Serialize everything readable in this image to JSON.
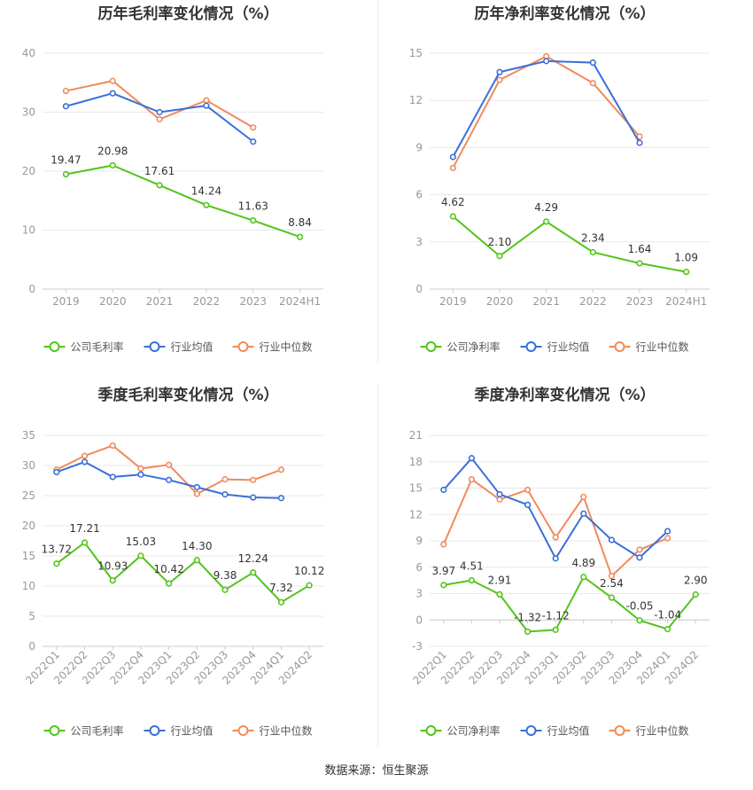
{
  "source": "数据来源：恒生聚源",
  "colors": {
    "company": "#52c41a",
    "avg": "#3a6fd8",
    "median": "#f08a5d",
    "grid": "#e8e8ec",
    "axis": "#999999",
    "label": "#333333"
  },
  "chart_data": [
    {
      "id": "annual-gross",
      "type": "line",
      "title": "历年毛利率变化情况（%）",
      "categories": [
        "2019",
        "2020",
        "2021",
        "2022",
        "2023",
        "2024H1"
      ],
      "ylim": [
        0,
        40
      ],
      "yticks": [
        0,
        10,
        20,
        30,
        40
      ],
      "rotate_x": false,
      "series": [
        {
          "name": "公司毛利率",
          "color": "#52c41a",
          "labels": true,
          "values": [
            19.47,
            20.98,
            17.61,
            14.24,
            11.63,
            8.84
          ],
          "value_labels": [
            "19.47",
            "20.98",
            "17.61",
            "14.24",
            "11.63",
            "8.84"
          ]
        },
        {
          "name": "行业均值",
          "color": "#3a6fd8",
          "labels": false,
          "values": [
            31.0,
            33.2,
            30.0,
            31.1,
            25.0,
            null
          ]
        },
        {
          "name": "行业中位数",
          "color": "#f08a5d",
          "labels": false,
          "values": [
            33.6,
            35.3,
            28.8,
            32.0,
            27.4,
            null
          ]
        }
      ]
    },
    {
      "id": "annual-net",
      "type": "line",
      "title": "历年净利率变化情况（%）",
      "categories": [
        "2019",
        "2020",
        "2021",
        "2022",
        "2023",
        "2024H1"
      ],
      "ylim": [
        0,
        15
      ],
      "yticks": [
        0,
        3,
        6,
        9,
        12,
        15
      ],
      "rotate_x": false,
      "series": [
        {
          "name": "公司净利率",
          "color": "#52c41a",
          "labels": true,
          "values": [
            4.62,
            2.1,
            4.29,
            2.34,
            1.64,
            1.09
          ],
          "value_labels": [
            "4.62",
            "2.10",
            "4.29",
            "2.34",
            "1.64",
            "1.09"
          ]
        },
        {
          "name": "行业均值",
          "color": "#3a6fd8",
          "labels": false,
          "values": [
            8.4,
            13.8,
            14.5,
            14.4,
            9.3,
            null
          ]
        },
        {
          "name": "行业中位数",
          "color": "#f08a5d",
          "labels": false,
          "values": [
            7.7,
            13.3,
            14.8,
            13.1,
            9.7,
            null
          ]
        }
      ]
    },
    {
      "id": "quarterly-gross",
      "type": "line",
      "title": "季度毛利率变化情况（%）",
      "categories": [
        "2022Q1",
        "2022Q2",
        "2022Q3",
        "2022Q4",
        "2023Q1",
        "2023Q2",
        "2023Q3",
        "2023Q4",
        "2024Q1",
        "2024Q2"
      ],
      "ylim": [
        0,
        35
      ],
      "yticks": [
        0,
        5,
        10,
        15,
        20,
        25,
        30,
        35
      ],
      "rotate_x": true,
      "series": [
        {
          "name": "公司毛利率",
          "color": "#52c41a",
          "labels": true,
          "values": [
            13.72,
            17.21,
            10.93,
            15.03,
            10.42,
            14.3,
            9.38,
            12.24,
            7.32,
            10.12
          ],
          "value_labels": [
            "13.72",
            "17.21",
            "10.93",
            "15.03",
            "10.42",
            "14.30",
            "9.38",
            "12.24",
            "7.32",
            "10.12"
          ]
        },
        {
          "name": "行业均值",
          "color": "#3a6fd8",
          "labels": false,
          "values": [
            28.9,
            30.6,
            28.1,
            28.5,
            27.6,
            26.4,
            25.2,
            24.7,
            24.6,
            null
          ]
        },
        {
          "name": "行业中位数",
          "color": "#f08a5d",
          "labels": false,
          "values": [
            29.3,
            31.6,
            33.3,
            29.5,
            30.1,
            25.3,
            27.7,
            27.6,
            29.3,
            null
          ]
        }
      ]
    },
    {
      "id": "quarterly-net",
      "type": "line",
      "title": "季度净利率变化情况（%）",
      "categories": [
        "2022Q1",
        "2022Q2",
        "2022Q3",
        "2022Q4",
        "2023Q1",
        "2023Q2",
        "2023Q3",
        "2023Q4",
        "2024Q1",
        "2024Q2"
      ],
      "ylim": [
        -3,
        21
      ],
      "yticks": [
        -3,
        0,
        3,
        6,
        9,
        12,
        15,
        18,
        21
      ],
      "rotate_x": true,
      "series": [
        {
          "name": "公司净利率",
          "color": "#52c41a",
          "labels": true,
          "values": [
            3.97,
            4.51,
            2.91,
            -1.32,
            -1.12,
            4.89,
            2.54,
            -0.05,
            -1.04,
            2.9
          ],
          "value_labels": [
            "3.97",
            "4.51",
            "2.91",
            "-1.32",
            "-1.12",
            "4.89",
            "2.54",
            "-0.05",
            "-1.04",
            "2.90"
          ]
        },
        {
          "name": "行业均值",
          "color": "#3a6fd8",
          "labels": false,
          "values": [
            14.8,
            18.4,
            14.3,
            13.1,
            7.0,
            12.1,
            9.1,
            7.1,
            10.1,
            null
          ]
        },
        {
          "name": "行业中位数",
          "color": "#f08a5d",
          "labels": false,
          "values": [
            8.6,
            16.0,
            13.7,
            14.8,
            9.4,
            14.0,
            5.0,
            8.0,
            9.3,
            null
          ]
        }
      ]
    }
  ]
}
